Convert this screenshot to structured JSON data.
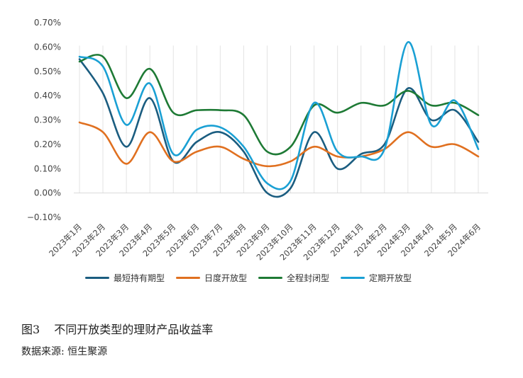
{
  "chart_data": {
    "type": "line",
    "categories": [
      "2023年1月",
      "2023年2月",
      "2023年3月",
      "2023年4月",
      "2023年5月",
      "2023年6月",
      "2023年7月",
      "2023年8月",
      "2023年9月",
      "2023年10月",
      "2023年11月",
      "2023年12月",
      "2024年1月",
      "2024年2月",
      "2024年3月",
      "2024年4月",
      "2024年5月",
      "2024年6月"
    ],
    "y_ticks": [
      "0.70%",
      "0.60%",
      "0.50%",
      "0.40%",
      "0.30%",
      "0.20%",
      "0.10%",
      "0.00%",
      "−0.10%"
    ],
    "ylim": [
      -0.1,
      0.7
    ],
    "grid": "vertical",
    "legend_position": "bottom",
    "series": [
      {
        "name": "最短持有期型",
        "color": "#1b5d80",
        "values": [
          0.55,
          0.41,
          0.19,
          0.39,
          0.13,
          0.21,
          0.25,
          0.17,
          0.0,
          0.02,
          0.25,
          0.1,
          0.16,
          0.2,
          0.43,
          0.3,
          0.34,
          0.21
        ]
      },
      {
        "name": "日度开放型",
        "color": "#e07020",
        "values": [
          0.29,
          0.25,
          0.12,
          0.25,
          0.13,
          0.17,
          0.19,
          0.14,
          0.11,
          0.13,
          0.19,
          0.15,
          0.15,
          0.18,
          0.25,
          0.19,
          0.2,
          0.15
        ]
      },
      {
        "name": "全程封闭型",
        "color": "#1e7a35",
        "values": [
          0.54,
          0.56,
          0.39,
          0.51,
          0.33,
          0.34,
          0.34,
          0.32,
          0.17,
          0.19,
          0.36,
          0.33,
          0.37,
          0.36,
          0.42,
          0.36,
          0.37,
          0.32
        ]
      },
      {
        "name": "定期开放型",
        "color": "#1aa0d4",
        "values": [
          0.56,
          0.52,
          0.28,
          0.45,
          0.16,
          0.26,
          0.27,
          0.19,
          0.04,
          0.05,
          0.37,
          0.17,
          0.15,
          0.18,
          0.62,
          0.28,
          0.38,
          0.18
        ]
      }
    ]
  },
  "caption": {
    "figure_no": "图3",
    "title": "不同开放类型的理财产品收益率"
  },
  "source": "数据来源: 恒生聚源"
}
